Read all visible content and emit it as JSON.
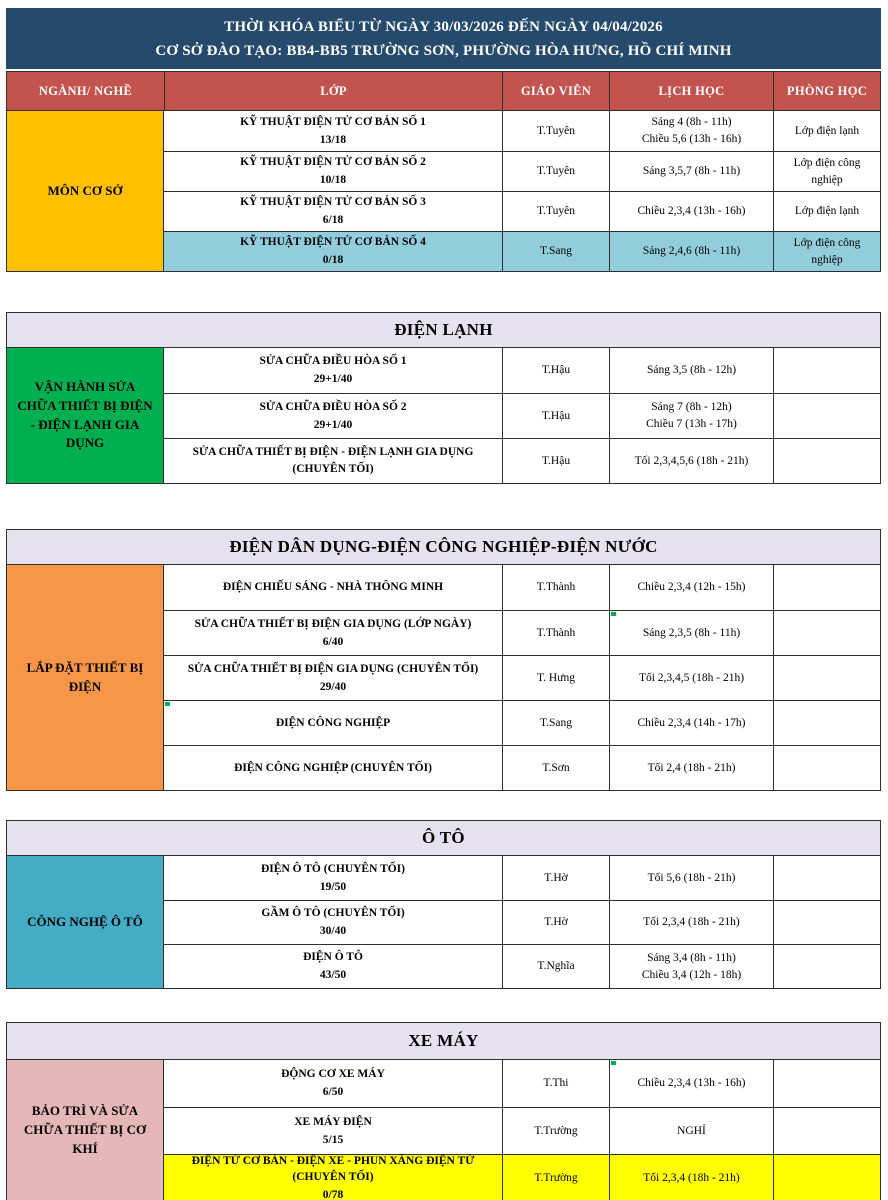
{
  "page": {
    "title_line1": "THỜI KHÓA BIỂU TỪ NGÀY 30/03/2026 ĐẾN NGÀY 04/04/2026",
    "title_line2": "CƠ SỞ ĐÀO TẠO: BB4-BB5 TRƯỜNG SƠN, PHƯỜNG HÒA HƯNG, HỒ CHÍ MINH"
  },
  "columns": {
    "nganh": "NGÀNH/ NGHỀ",
    "lop": "LỚP",
    "giao_vien": "GIÁO VIÊN",
    "lich_hoc": "LỊCH HỌC",
    "phong_hoc": "PHÒNG HỌC"
  },
  "colors": {
    "title_navy": "#264A6C",
    "header_red": "#C3534E",
    "section_band_lavender": "#E5E1EE",
    "category_yellow": "#FFC000",
    "category_green": "#00B050",
    "category_orange": "#F79646",
    "category_teal": "#44ADC5",
    "category_pink": "#E5B8B7",
    "row_highlight_blue": "#92CDDC",
    "row_highlight_yellow": "#FFFF00",
    "comment_marker_green": "#00B050"
  },
  "sections": [
    {
      "band": "",
      "category": "MÔN CƠ SỞ",
      "rows": [
        {
          "class_name": "KỸ THUẬT ĐIỆN TỬ CƠ BẢN SỐ 1",
          "enrollment": "13/18",
          "teacher": "T.Tuyên",
          "schedule": "Sáng 4 (8h - 11h)\nChiều 5,6 (13h - 16h)",
          "room": "Lớp điện lạnh"
        },
        {
          "class_name": "KỸ THUẬT ĐIỆN TỬ CƠ BẢN SỐ 2",
          "enrollment": "10/18",
          "teacher": "T.Tuyên",
          "schedule": "Sáng 3,5,7 (8h - 11h)",
          "room": "Lớp điện công nghiệp"
        },
        {
          "class_name": "KỸ THUẬT ĐIỆN TỬ CƠ BẢN SỐ 3",
          "enrollment": "6/18",
          "teacher": "T.Tuyên",
          "schedule": "Chiều 2,3,4 (13h - 16h)",
          "room": "Lớp điện lạnh"
        },
        {
          "class_name": "KỸ THUẬT ĐIỆN TỬ CƠ BẢN SỐ 4",
          "enrollment": "0/18",
          "teacher": "T.Sang",
          "schedule": "Sáng 2,4,6 (8h - 11h)",
          "room": "Lớp điện công nghiệp"
        }
      ]
    },
    {
      "band": "ĐIỆN LẠNH",
      "category": "VẬN HÀNH SỬA CHỮA THIẾT BỊ ĐIỆN - ĐIỆN LẠNH GIA DỤNG",
      "rows": [
        {
          "class_name": "SỬA CHỮA ĐIỀU HÒA SỐ 1",
          "enrollment": "29+1/40",
          "teacher": "T.Hậu",
          "schedule": "Sáng 3,5 (8h - 12h)",
          "room": ""
        },
        {
          "class_name": "SỬA CHỮA ĐIỀU HÒA SỐ 2",
          "enrollment": "29+1/40",
          "teacher": "T.Hậu",
          "schedule": "Sáng 7 (8h - 12h)\nChiều 7 (13h - 17h)",
          "room": ""
        },
        {
          "class_name": "SỬA CHỮA THIẾT BỊ ĐIỆN - ĐIỆN LẠNH GIA DỤNG (CHUYÊN TỐI)",
          "enrollment": "",
          "teacher": "T.Hậu",
          "schedule": "Tối 2,3,4,5,6 (18h - 21h)",
          "room": ""
        }
      ]
    },
    {
      "band": "ĐIỆN DÂN DỤNG-ĐIỆN CÔNG NGHIỆP-ĐIỆN NƯỚC",
      "category": "LẮP ĐẶT THIẾT BỊ ĐIỆN",
      "rows": [
        {
          "class_name": "ĐIỆN CHIẾU SÁNG - NHÀ THÔNG MINH",
          "enrollment": "",
          "teacher": "T.Thành",
          "schedule": "Chiều 2,3,4 (12h - 15h)",
          "room": ""
        },
        {
          "class_name": "SỬA CHỮA THIẾT BỊ ĐIỆN GIA DỤNG (LỚP NGÀY)",
          "enrollment": "6/40",
          "teacher": "T.Thành",
          "schedule": "Sáng 2,3,5 (8h - 11h)",
          "room": ""
        },
        {
          "class_name": "SỬA CHỮA THIẾT BỊ ĐIỆN GIA DỤNG (CHUYÊN TỐI)",
          "enrollment": "29/40",
          "teacher": "T. Hưng",
          "schedule": "Tối 2,3,4,5 (18h - 21h)",
          "room": ""
        },
        {
          "class_name": "ĐIỆN CÔNG NGHIỆP",
          "enrollment": "",
          "teacher": "T.Sang",
          "schedule": "Chiều 2,3,4 (14h - 17h)",
          "room": ""
        },
        {
          "class_name": "ĐIỆN CÔNG NGHIỆP (CHUYÊN TỐI)",
          "enrollment": "",
          "teacher": "T.Sơn",
          "schedule": "Tối 2,4 (18h - 21h)",
          "room": ""
        }
      ]
    },
    {
      "band": "Ô TÔ",
      "category": "CÔNG NGHỆ Ô TÔ",
      "rows": [
        {
          "class_name": "ĐIỆN Ô TÔ (CHUYÊN TỐI)",
          "enrollment": "19/50",
          "teacher": "T.Hờ",
          "schedule": "Tối 5,6 (18h - 21h)",
          "room": ""
        },
        {
          "class_name": "GẦM Ô TÔ (CHUYÊN TỐI)",
          "enrollment": "30/40",
          "teacher": "T.Hờ",
          "schedule": "Tối 2,3,4 (18h - 21h)",
          "room": ""
        },
        {
          "class_name": "ĐIỆN Ô TÔ",
          "enrollment": "43/50",
          "teacher": "T.Nghĩa",
          "schedule": "Sáng 3,4 (8h - 11h)\nChiều 3,4 (12h - 18h)",
          "room": ""
        }
      ]
    },
    {
      "band": "XE MÁY",
      "category": "BẢO TRÌ VÀ SỬA CHỮA THIẾT BỊ CƠ KHÍ",
      "rows": [
        {
          "class_name": "ĐỘNG CƠ XE MÁY",
          "enrollment": "6/50",
          "teacher": "T.Thi",
          "schedule": "Chiều 2,3,4 (13h - 16h)",
          "room": ""
        },
        {
          "class_name": "XE MÁY ĐIỆN",
          "enrollment": "5/15",
          "teacher": "T.Trường",
          "schedule": "NGHỈ",
          "room": ""
        },
        {
          "class_name": "ĐIỆN TỬ CƠ BẢN - ĐIỆN XE - PHUN XĂNG ĐIỆN TỬ (CHUYÊN TỐI)",
          "enrollment": "0/78",
          "teacher": "T.Trường",
          "schedule": "Tối 2,3,4 (18h - 21h)",
          "room": ""
        }
      ]
    }
  ]
}
